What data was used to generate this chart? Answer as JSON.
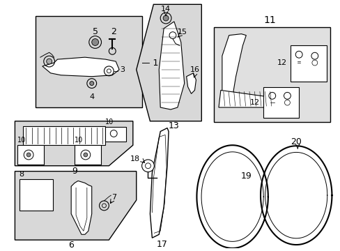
{
  "bg_color": "#ffffff",
  "line_color": "#000000",
  "fill_light": "#d8d8d8",
  "figsize": [
    4.89,
    3.6
  ],
  "dpi": 100
}
